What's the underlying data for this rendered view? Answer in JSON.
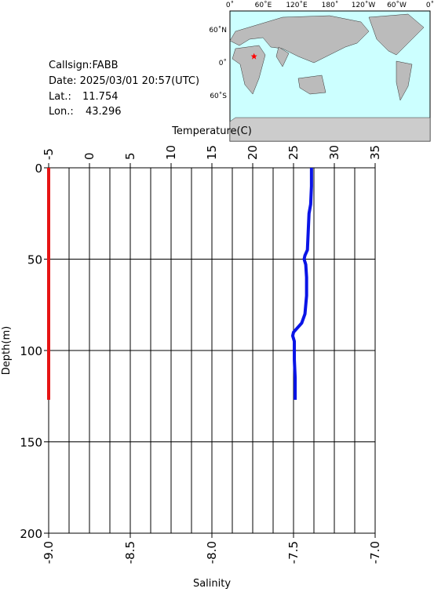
{
  "info": {
    "callsign": "Callsign:FABB",
    "date": "Date:  2025/03/01 20:57(UTC)",
    "lat_label": "Lat.:",
    "lat": 11.754,
    "lon_label": "Lon.:",
    "lon": 43.296
  },
  "map": {
    "lon_labels": [
      "0˚",
      "60˚E",
      "120˚E",
      "180˚",
      "120˚W",
      "60˚W",
      "0˚"
    ],
    "lat_labels": [
      "60˚N",
      "0˚",
      "60˚S"
    ]
  },
  "chart_data": {
    "type": "line",
    "xlabel": "Temperature(C)",
    "x2label": "Salinity",
    "ylabel": "Depth(m)",
    "xlim": [
      -5,
      35
    ],
    "xticks": [
      -5,
      0,
      5,
      10,
      15,
      20,
      25,
      30,
      35
    ],
    "xminorticks": [
      -2.5,
      2.5,
      7.5,
      12.5,
      17.5,
      22.5,
      27.5,
      32.5
    ],
    "x2lim": [
      -9.0,
      -7.0
    ],
    "x2ticks": [
      {
        "value": -9.0,
        "label": "-9.0"
      },
      {
        "value": -8.5,
        "label": "-8.5"
      },
      {
        "value": -8.0,
        "label": "-8.0"
      },
      {
        "value": -7.5,
        "label": "-7.5"
      },
      {
        "value": -7.0,
        "label": "-7.0"
      }
    ],
    "ylim": [
      0,
      200
    ],
    "yticks": [
      0,
      50,
      100,
      150,
      200
    ],
    "y_inverted": true,
    "grid": true,
    "depths": [
      0,
      10,
      20,
      25,
      35,
      45,
      48,
      50,
      53,
      60,
      70,
      75,
      80,
      85,
      88,
      90,
      92,
      95,
      105,
      115,
      127
    ],
    "series": [
      {
        "name": "Temperature",
        "color": "#0a14e6",
        "axis": "x",
        "values": [
          27.2,
          27.2,
          27.1,
          26.9,
          26.8,
          26.7,
          26.4,
          26.3,
          26.5,
          26.6,
          26.6,
          26.5,
          26.4,
          26.0,
          25.4,
          25.0,
          24.9,
          25.1,
          25.1,
          25.2,
          25.2
        ]
      },
      {
        "name": "Salinity",
        "color": "#e61414",
        "axis": "x2",
        "values": [
          -9.0,
          -9.0,
          -9.0,
          -9.0,
          -9.0,
          -9.0,
          -9.0,
          -9.0,
          -9.0,
          -9.0,
          -9.0,
          -9.0,
          -9.0,
          -9.0,
          -9.0,
          -9.0,
          -9.0,
          -9.0,
          -9.0,
          -9.0,
          -9.0
        ]
      }
    ]
  }
}
